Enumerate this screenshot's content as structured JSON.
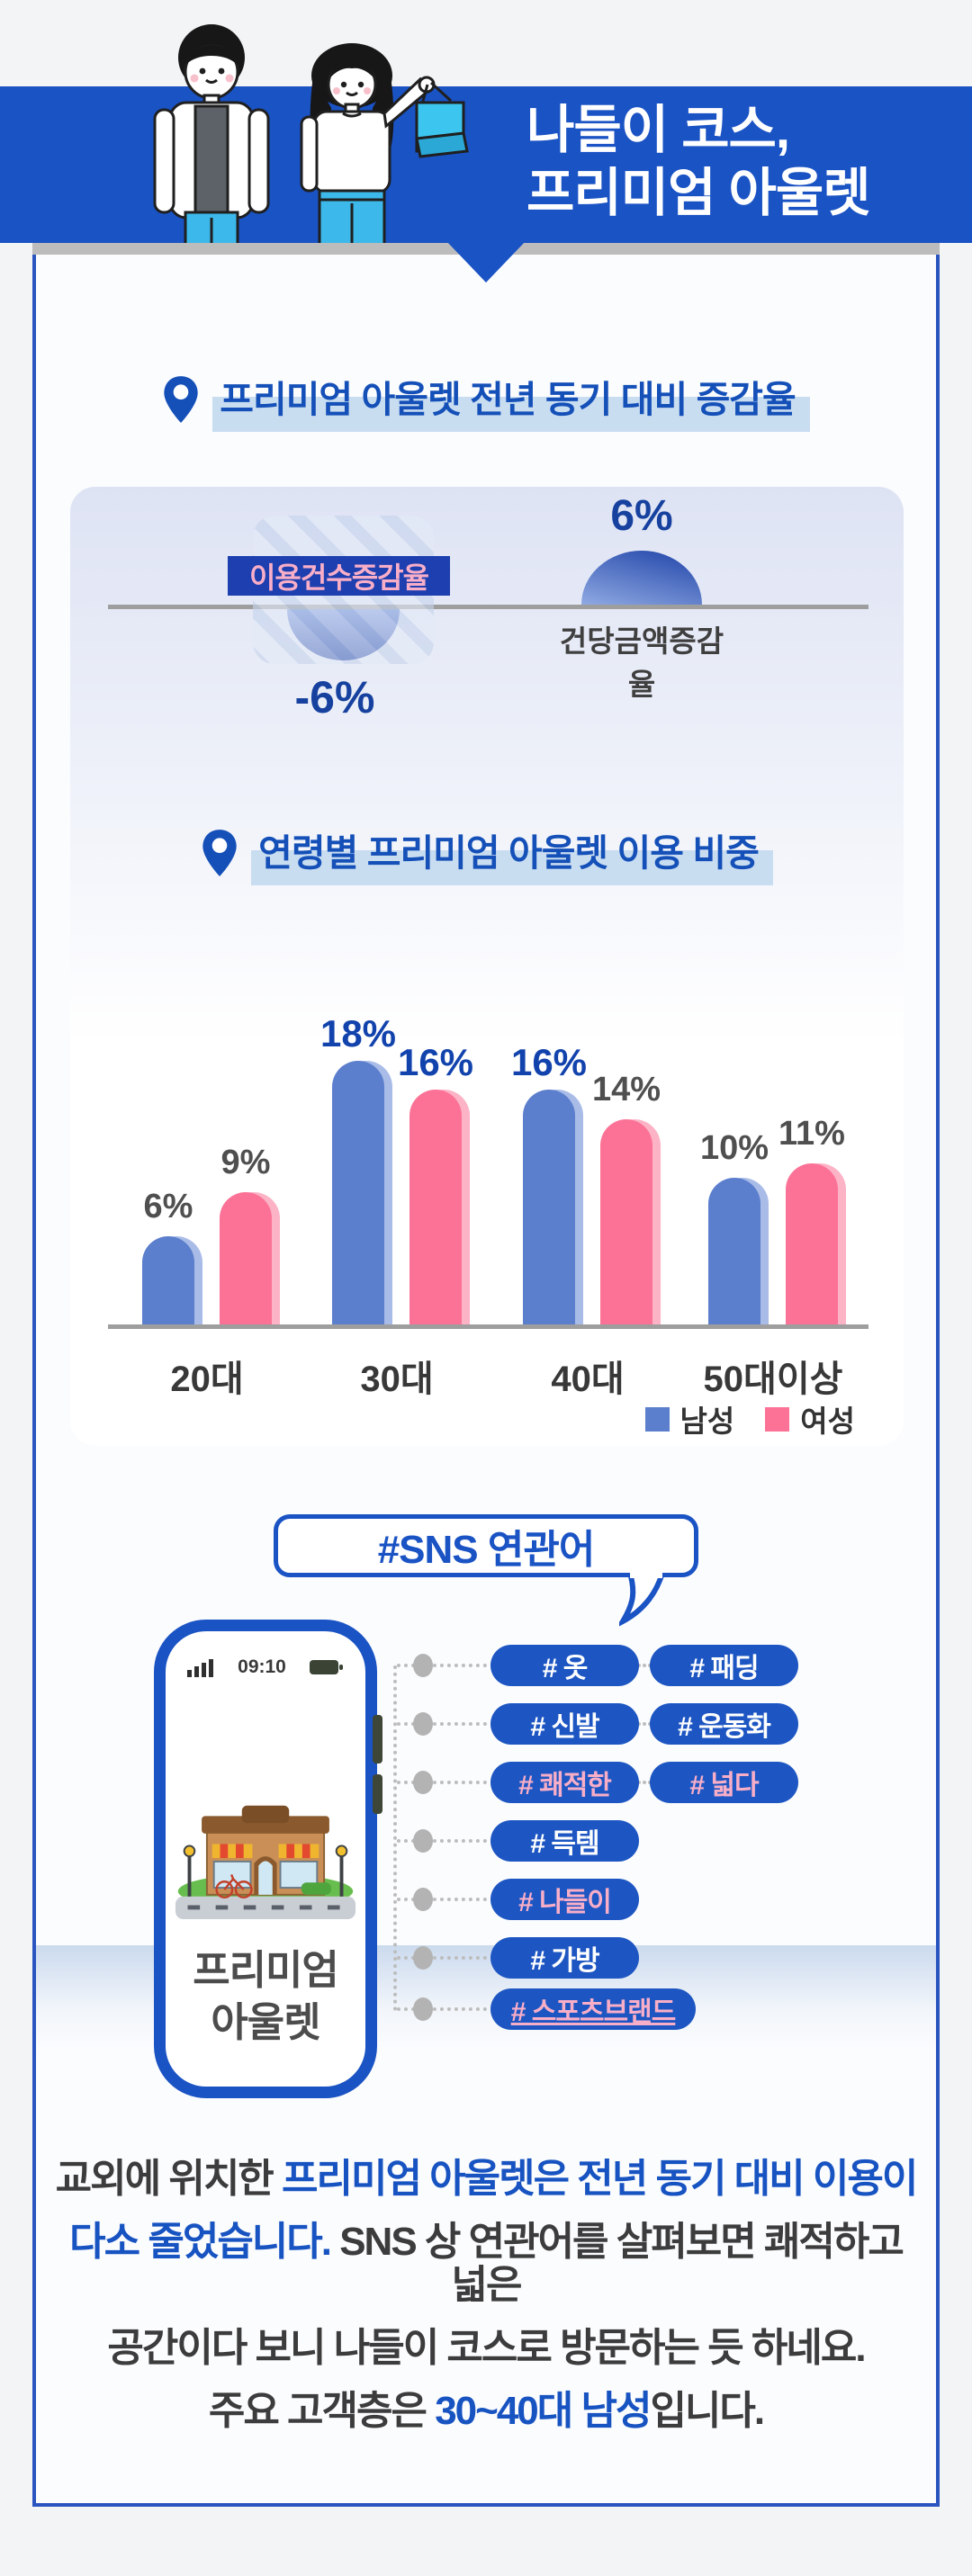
{
  "header": {
    "title_line1": "나들이 코스,",
    "title_line2": "프리미엄 아울렛",
    "banner_color": "#1a53c4",
    "illustration": "couple-with-shopping-bag"
  },
  "section1": {
    "title": "프리미엄 아울렛 전년 동기 대비 증감율"
  },
  "section2": {
    "title": "연령별 프리미엄 아울렛 이용 비중"
  },
  "chart_data": [
    {
      "type": "bar",
      "title": "프리미엄 아울렛 전년 동기 대비 증감율",
      "categories": [
        "이용건수증감율",
        "건당금액증감율"
      ],
      "values": [
        -6,
        6
      ],
      "value_labels": [
        "-6%",
        "6%"
      ],
      "unit": "%",
      "layout_hint": "signed半 dome shapes below/above a gray zero baseline",
      "colors": {
        "label_box": "#1e3faf",
        "label_text": "#f9aec8",
        "shape_gradient": [
          "#7b97de",
          "#1d3fa3"
        ],
        "value_text": "#16419f"
      }
    },
    {
      "type": "bar",
      "title": "연령별 프리미엄 아울렛 이용 비중",
      "categories": [
        "20대",
        "30대",
        "40대",
        "50대이상"
      ],
      "unit": "%",
      "series": [
        {
          "name": "남성",
          "color": "#5b7ecd",
          "shadow": "#a9bce8",
          "values": [
            6,
            18,
            16,
            10
          ]
        },
        {
          "name": "여성",
          "color": "#fb7296",
          "shadow": "#fcb3c6",
          "values": [
            9,
            16,
            14,
            11
          ]
        }
      ],
      "highlighted_value_labels": [
        [
          false,
          true,
          true,
          false
        ],
        [
          false,
          true,
          false,
          false
        ]
      ],
      "ylim": [
        0,
        20
      ],
      "grid": false,
      "legend_position": "bottom-right"
    }
  ],
  "sns": {
    "bubble_title": "#SNS 연관어",
    "phone": {
      "status_time": "09:10",
      "screen_label_line1": "프리미엄",
      "screen_label_line2": "아울렛",
      "screen_art": "outlet-storefront-illustration"
    },
    "hashtags": [
      {
        "left": {
          "label": "# 옷",
          "accent": false
        },
        "right": {
          "label": "# 패딩",
          "accent": false
        }
      },
      {
        "left": {
          "label": "# 신발",
          "accent": false
        },
        "right": {
          "label": "# 운동화",
          "accent": false
        }
      },
      {
        "left": {
          "label": "# 쾌적한",
          "accent": true
        },
        "right": {
          "label": "# 넓다",
          "accent": true
        }
      },
      {
        "left": {
          "label": "# 득템",
          "accent": false
        }
      },
      {
        "left": {
          "label": "# 나들이",
          "accent": true
        }
      },
      {
        "left": {
          "label": "# 가방",
          "accent": false
        }
      },
      {
        "left": {
          "label": "# 스포츠브랜드",
          "accent": true,
          "underline": true,
          "wide": true
        }
      }
    ]
  },
  "footer": {
    "lines": [
      [
        {
          "t": "교외에 위치한 ",
          "c": "dark"
        },
        {
          "t": "프리미엄 아울렛은 전년 동기 대비 이용이",
          "c": "blue"
        }
      ],
      [
        {
          "t": "다소 줄었습니다.",
          "c": "blue"
        },
        {
          "t": " SNS 상 연관어를 살펴보면 쾌적하고 넓은",
          "c": "dark"
        }
      ],
      [
        {
          "t": "공간이다 보니 나들이 코스로 방문하는 듯 하네요.",
          "c": "dark"
        }
      ],
      [
        {
          "t": "주요 고객층은 ",
          "c": "dark"
        },
        {
          "t": "30~40대 남성",
          "c": "blue"
        },
        {
          "t": "입니다.",
          "c": "dark"
        }
      ]
    ]
  },
  "colors": {
    "accent_blue": "#1a53c4",
    "title_blue": "#1450b8",
    "pill_blue": "#1d56c2",
    "accent_pink": "#f9aec8",
    "male_bar": "#5b7ecd",
    "female_bar": "#fb7296",
    "dark_text": "#3c3c3c"
  }
}
